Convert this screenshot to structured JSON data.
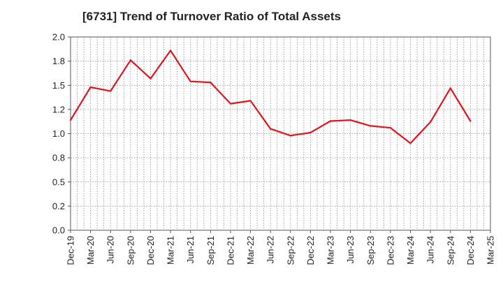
{
  "chart_data": {
    "type": "line",
    "title": "[6731]  Trend of Turnover Ratio of Total Assets",
    "xlabel": "",
    "ylabel": "",
    "ylim": [
      0.0,
      2.0
    ],
    "yticks": [
      "0.0",
      "0.2",
      "0.5",
      "0.8",
      "1.0",
      "1.2",
      "1.5",
      "1.8",
      "2.0"
    ],
    "ytick_values": [
      0.0,
      0.25,
      0.5,
      0.75,
      1.0,
      1.25,
      1.5,
      1.75,
      2.0
    ],
    "xticks": [
      "Dec-19",
      "Mar-20",
      "Jun-20",
      "Sep-20",
      "Dec-20",
      "Mar-21",
      "Jun-21",
      "Sep-21",
      "Dec-21",
      "Mar-22",
      "Jun-22",
      "Sep-22",
      "Dec-22",
      "Mar-23",
      "Jun-23",
      "Sep-23",
      "Dec-23",
      "Mar-24",
      "Jun-24",
      "Sep-24",
      "Dec-24",
      "Mar-25"
    ],
    "grid": true,
    "legend": "none",
    "series": [
      {
        "name": "",
        "color": "#e0141e",
        "x": [
          "Dec-19",
          "Mar-20",
          "Jun-20",
          "Sep-20",
          "Dec-20",
          "Mar-21",
          "Jun-21",
          "Sep-21",
          "Dec-21",
          "Mar-22",
          "Jun-22",
          "Sep-22",
          "Dec-22",
          "Mar-23",
          "Jun-23",
          "Sep-23",
          "Dec-23",
          "Mar-24",
          "Jun-24",
          "Sep-24",
          "Dec-24"
        ],
        "values": [
          1.14,
          1.48,
          1.44,
          1.76,
          1.57,
          1.86,
          1.54,
          1.53,
          1.31,
          1.34,
          1.05,
          0.98,
          1.01,
          1.13,
          1.14,
          1.08,
          1.06,
          0.9,
          1.12,
          1.47,
          1.13
        ]
      }
    ]
  }
}
